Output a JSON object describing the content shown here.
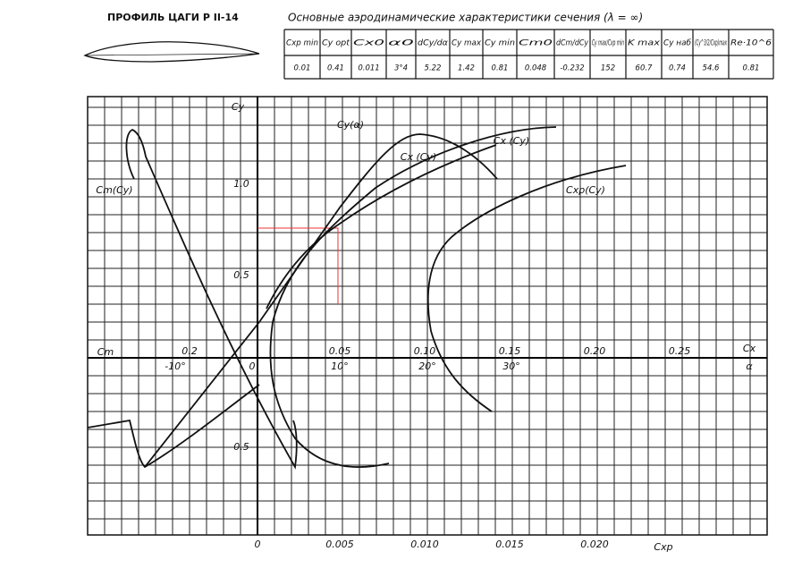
{
  "header": {
    "title": "ПРОФИЛЬ ЦАГИ Р II-14",
    "subtitle": "Основные аэродинамические характеристики сечения (λ = ∞)"
  },
  "table": {
    "columns": [
      "Cxp min",
      "Cy opt",
      "Cx0",
      "α0",
      "dCy/dα",
      "Cy max",
      "Cy min",
      "Cm0",
      "dCm/dCy",
      "Cy max/Cxp min",
      "K max",
      "Cy наб",
      "(Cy^3/2/Cxp)max",
      "Re·10^6"
    ],
    "rows": [
      [
        "0.01",
        "0.41",
        "0.011",
        "3°4",
        "5.22",
        "1.42",
        "0.81",
        "0.048",
        "-0.232",
        "152",
        "60.7",
        "0.74",
        "54.6",
        "0.81"
      ]
    ]
  },
  "axes": {
    "cy_label": "Cy",
    "cy_ticks": [
      "1.0",
      "0.5",
      "0.5"
    ],
    "cm_label": "Cm",
    "cm_tick": "0.2",
    "alpha_neg": "-10°",
    "origin": "0",
    "cx_ticks": [
      "0.05",
      "0.10",
      "0.15",
      "0.20",
      "0.25"
    ],
    "cx_label": "Cx",
    "alpha_ticks": [
      "10°",
      "20°",
      "30°"
    ],
    "alpha_label": "α",
    "cxp_ticks": [
      "0",
      "0.005",
      "0.010",
      "0.015",
      "0.020"
    ],
    "cxp_label": "Cxp"
  },
  "curves": {
    "cy_alpha": "Cy(α)",
    "cx_cy_1": "Cx (Cy)",
    "cx_cy_2": "Cx (Cy)",
    "cxp_cy": "Cxp(Cy)",
    "cm_cy": "Cm(Cy)"
  }
}
